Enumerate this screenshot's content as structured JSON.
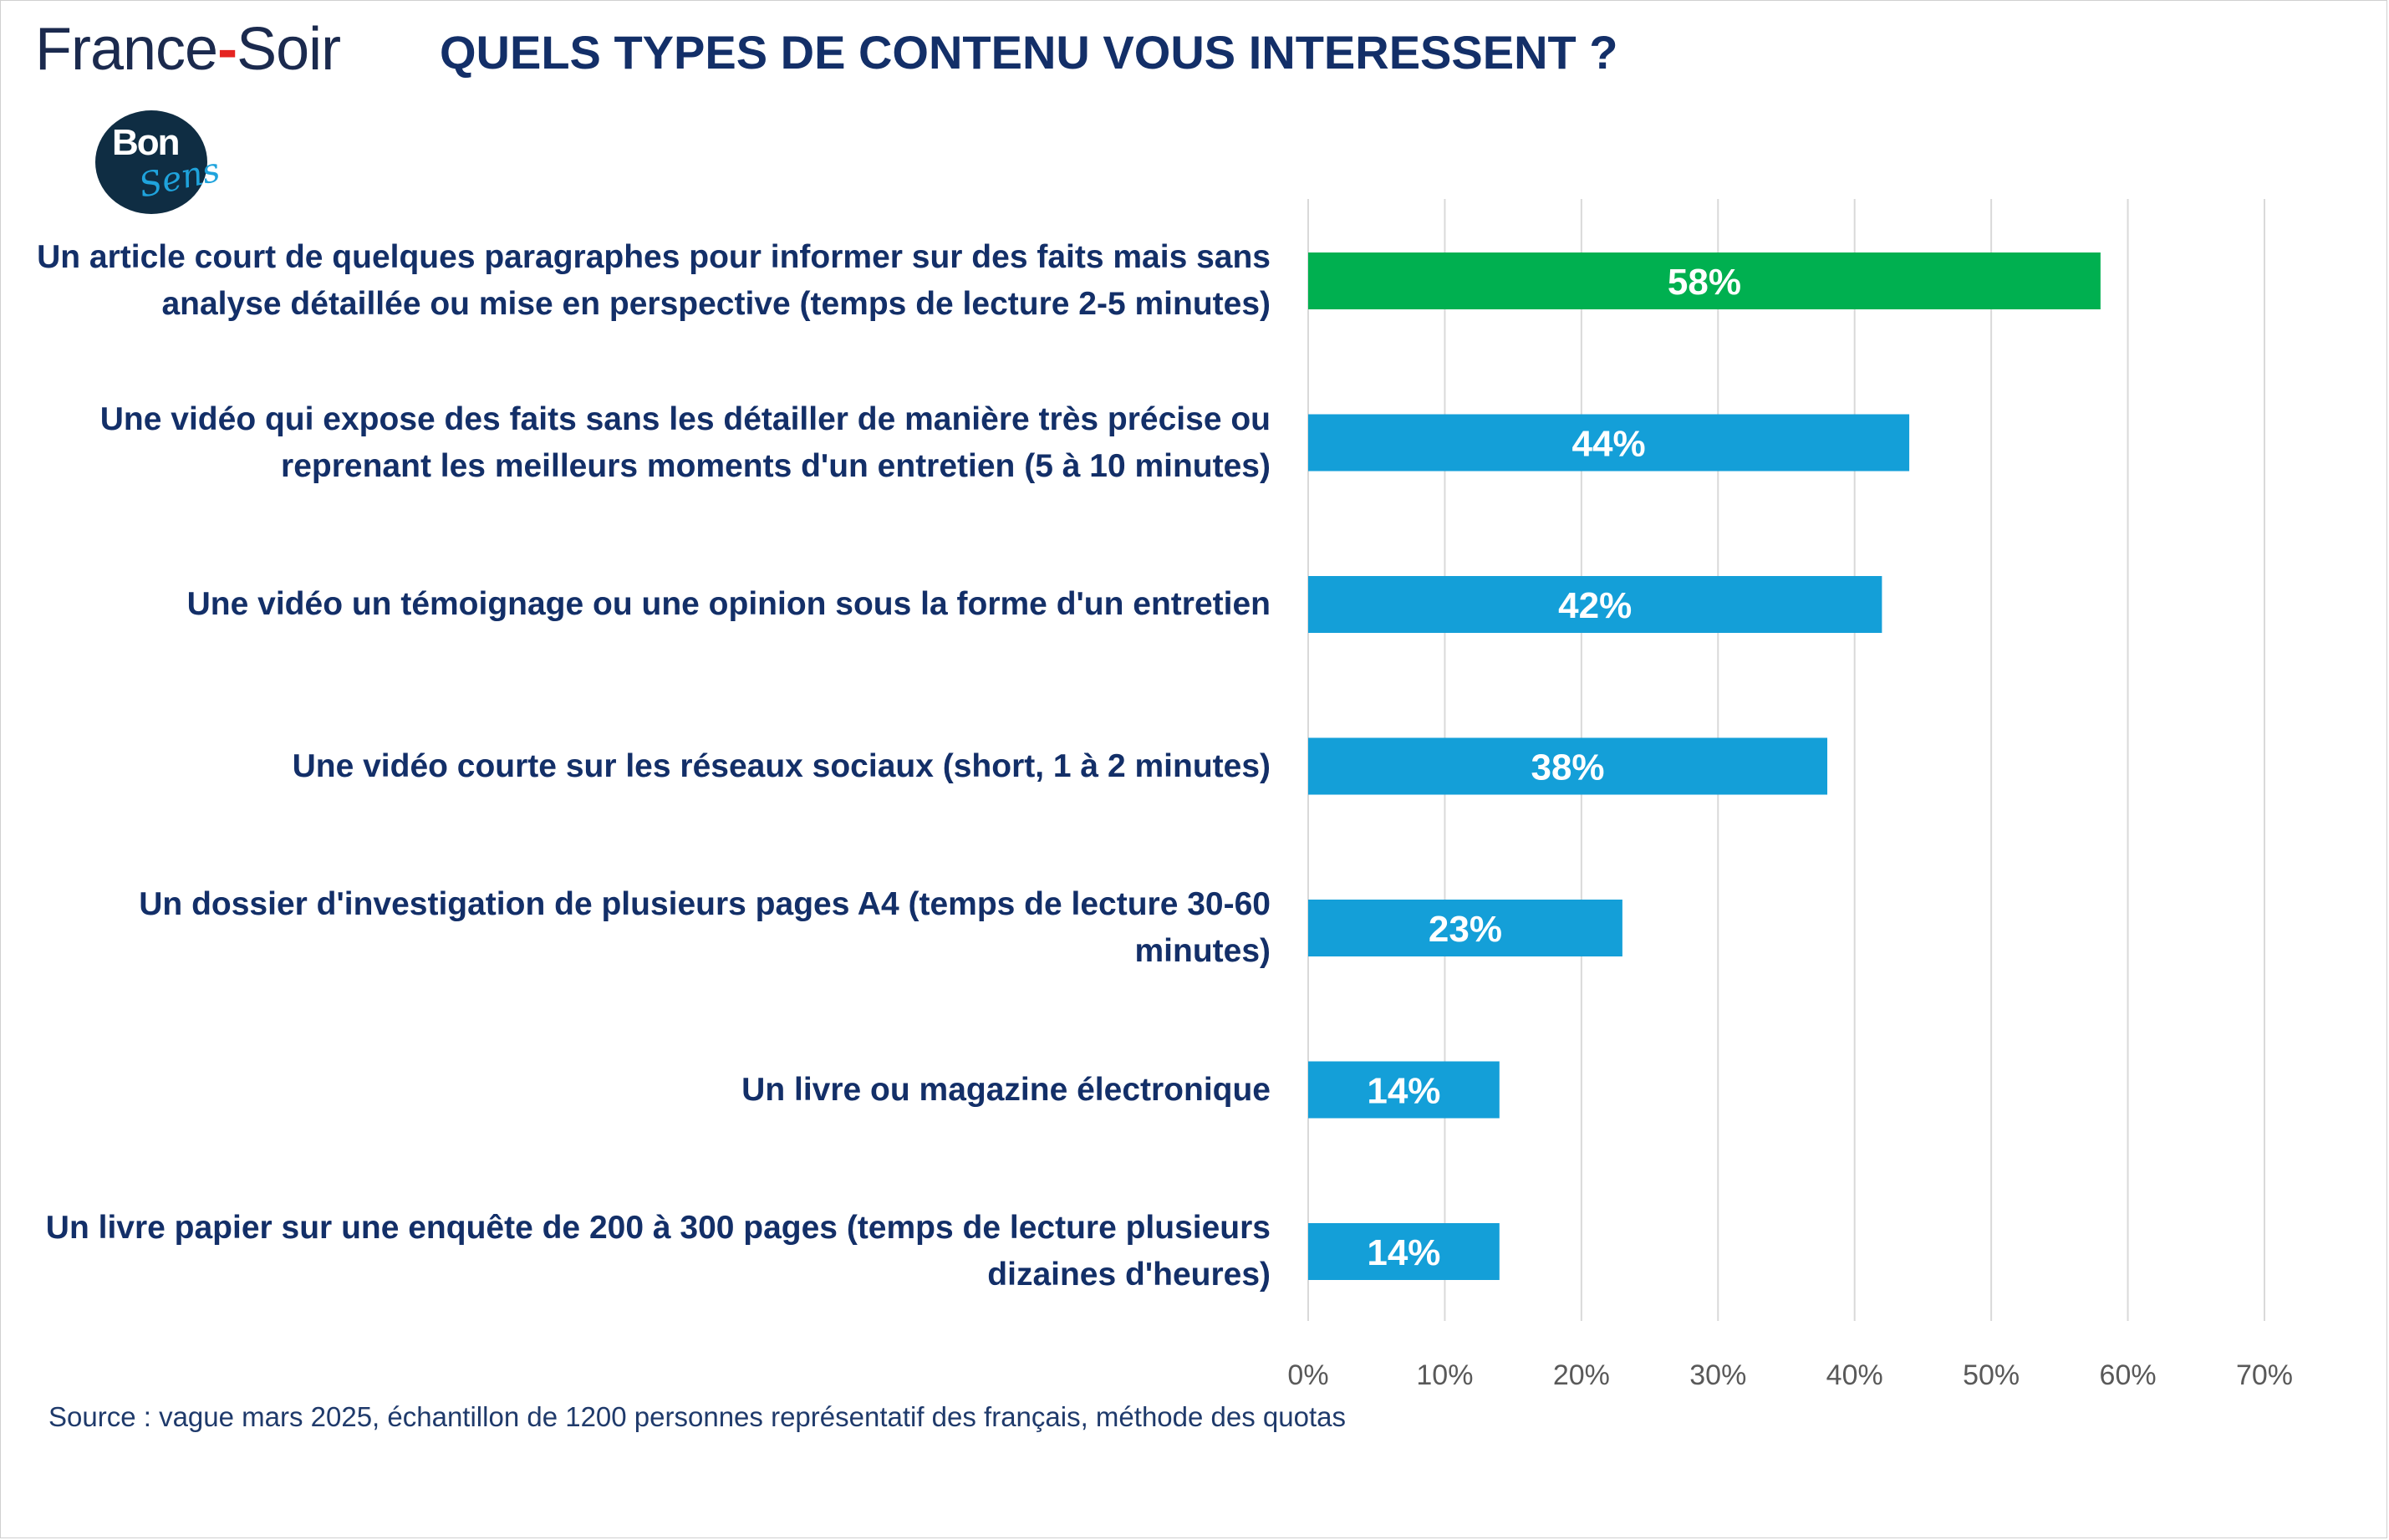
{
  "brand": {
    "name_left": "France",
    "name_dash": "-",
    "name_right": "Soir",
    "logo_top": "Bon",
    "logo_bottom": "Sens"
  },
  "colors": {
    "highlight": "#00b050",
    "bar": "#149fd8",
    "text": "#132f68",
    "grid": "#d9d9d9"
  },
  "source_note": "Source : vague mars 2025, échantillon de 1200 personnes représentatif des français, méthode des quotas",
  "chart_data": {
    "type": "bar",
    "orientation": "horizontal",
    "title": "QUELS TYPES DE CONTENU VOUS INTERESSENT ?",
    "categories": [
      "Un article court de quelques paragraphes pour informer sur des faits mais sans analyse détaillée ou mise en perspective (temps de lecture 2-5 minutes)",
      "Une vidéo qui expose des faits sans les détailler de manière très précise ou reprenant les meilleurs moments d'un entretien (5 à 10 minutes)",
      "Une vidéo un témoignage ou une opinion sous la forme d'un entretien",
      "Une vidéo courte sur les réseaux sociaux (short, 1 à 2 minutes)",
      "Un dossier d'investigation de plusieurs pages A4 (temps de lecture 30-60 minutes)",
      "Un livre ou magazine électronique",
      "Un livre papier sur une enquête de 200 à 300 pages (temps de lecture plusieurs dizaines d'heures)"
    ],
    "values": [
      58,
      44,
      42,
      38,
      23,
      14,
      14
    ],
    "data_labels": [
      "58%",
      "44%",
      "42%",
      "38%",
      "23%",
      "14%",
      "14%"
    ],
    "highlighted_index": 0,
    "xlim": [
      0,
      70
    ],
    "x_ticks": [
      0,
      10,
      20,
      30,
      40,
      50,
      60,
      70
    ],
    "x_tick_labels": [
      "0%",
      "10%",
      "20%",
      "30%",
      "40%",
      "50%",
      "60%",
      "70%"
    ],
    "grid": "vertical",
    "legend": "none"
  }
}
